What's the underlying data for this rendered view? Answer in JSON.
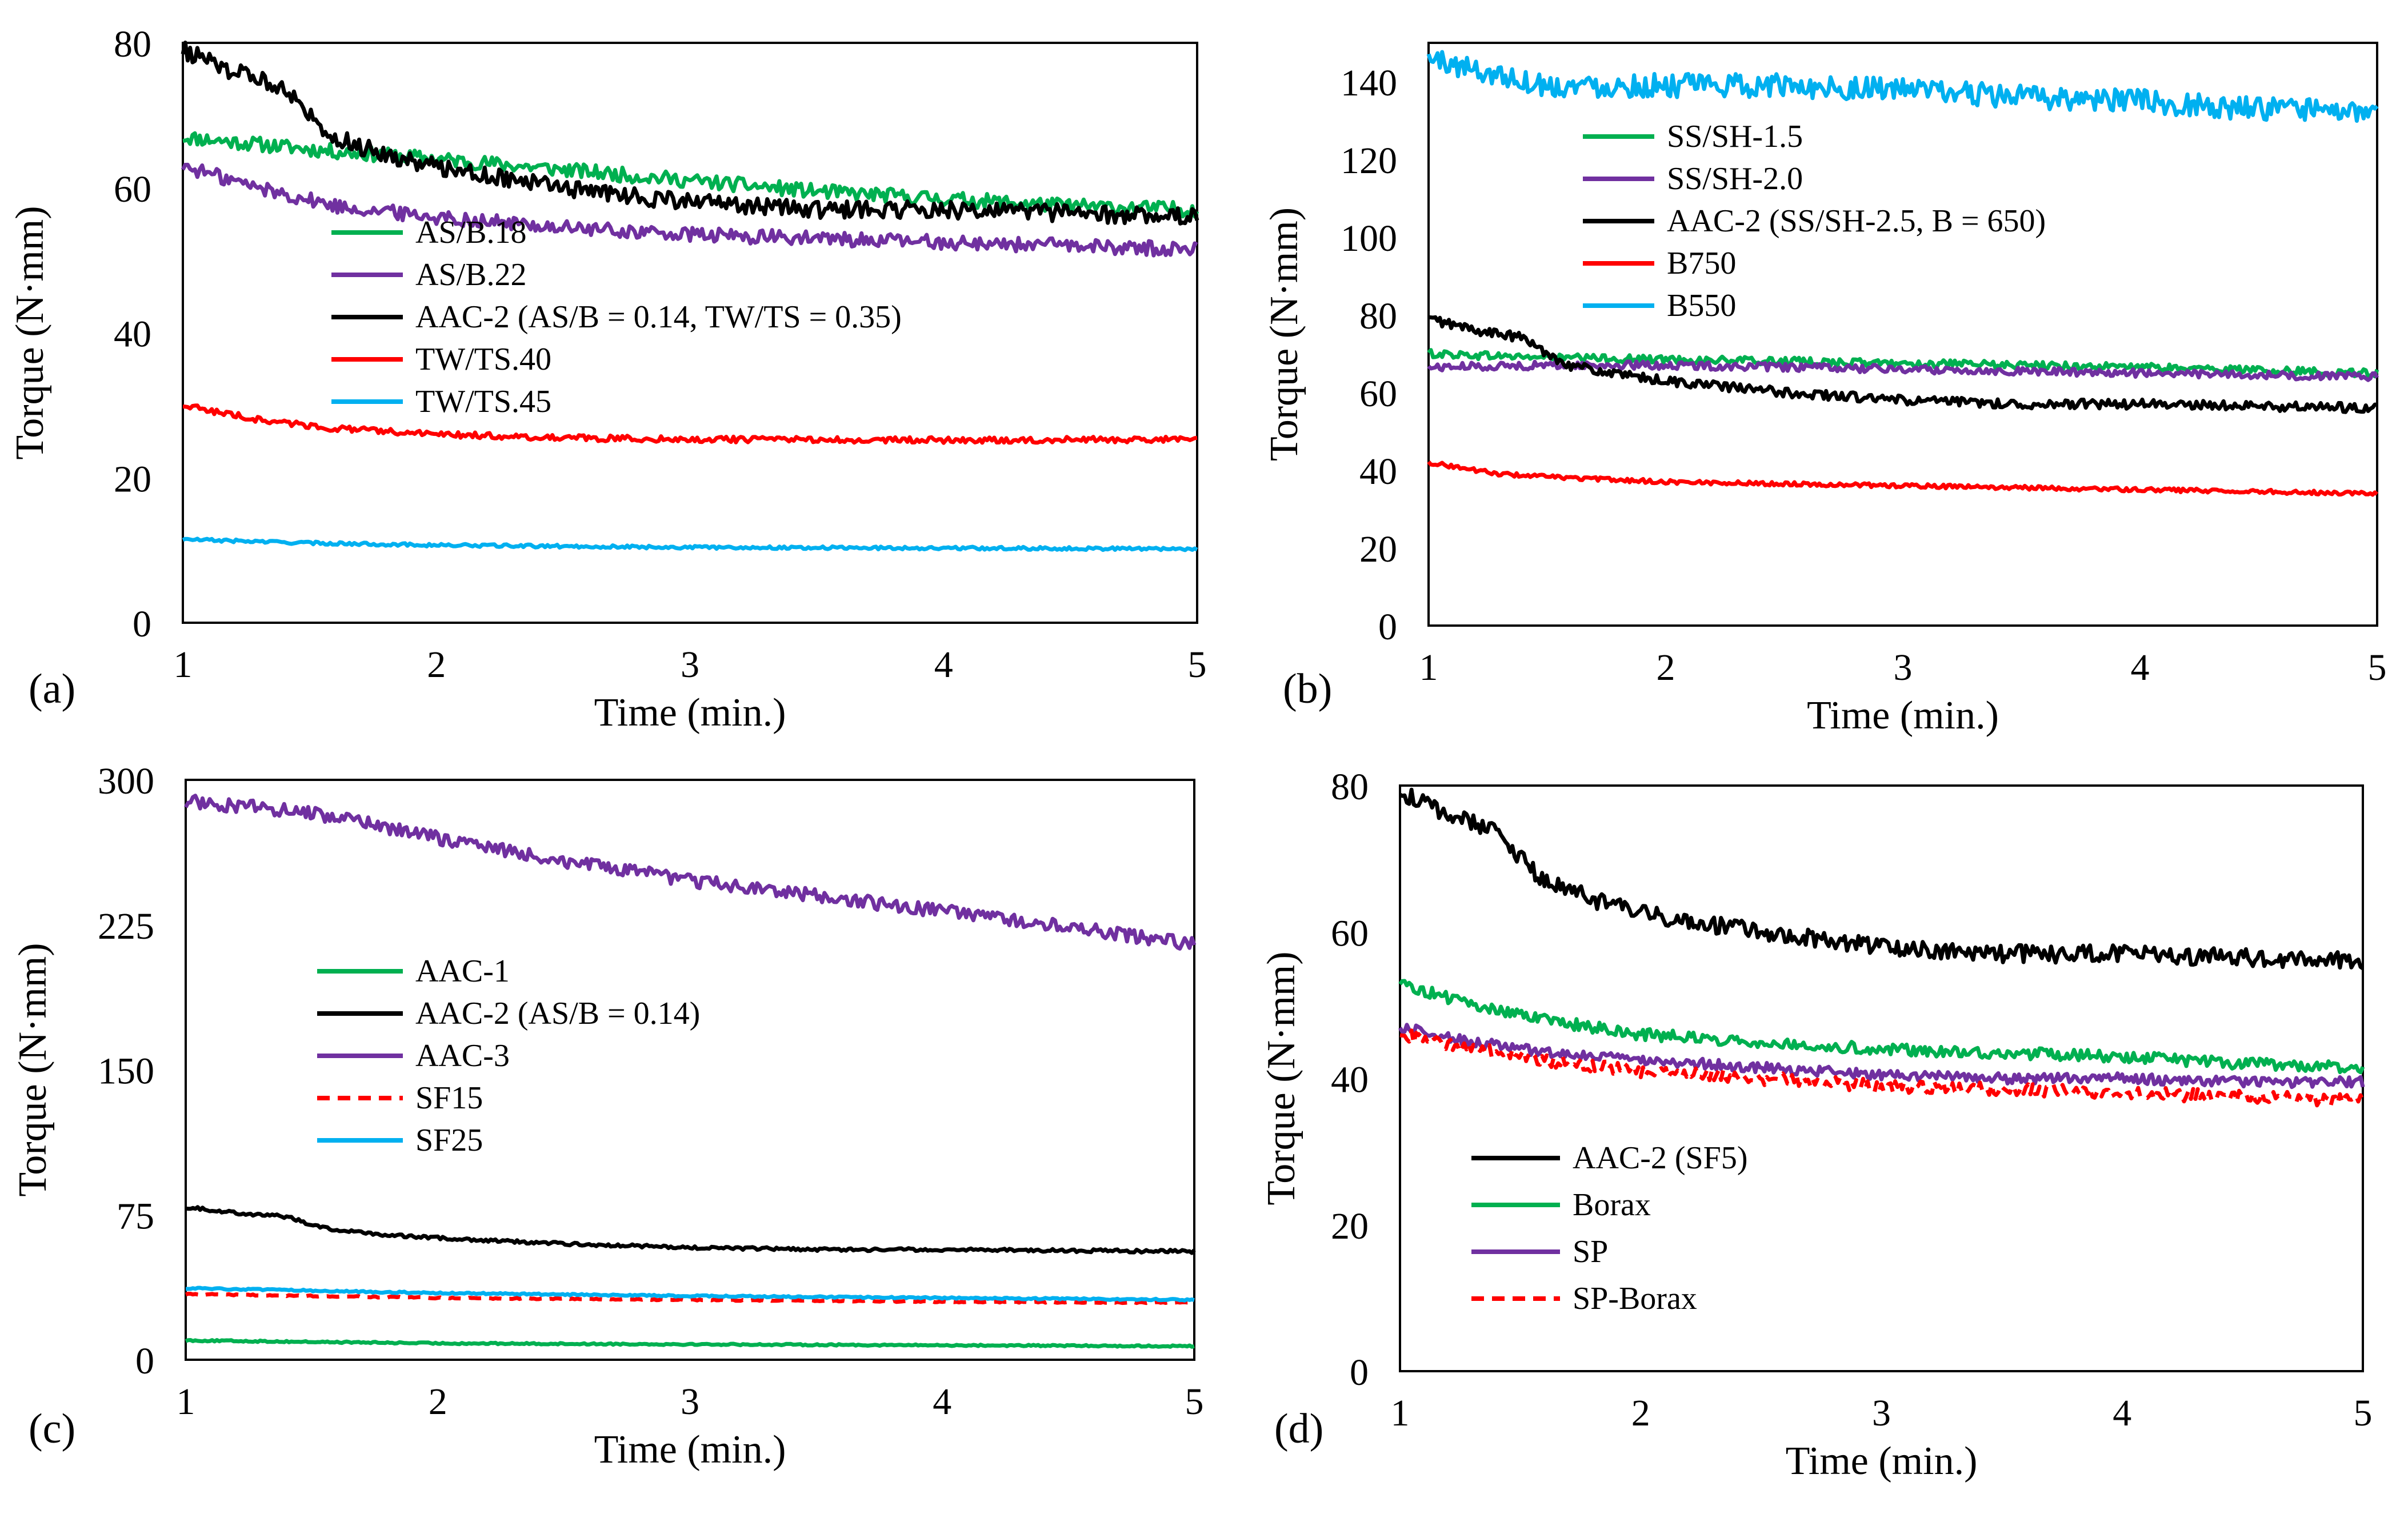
{
  "figure": {
    "time_unit_label": "Time (min.)"
  },
  "chart_data": [
    {
      "type": "line",
      "panel_label": "(a)",
      "xlabel": "Time (min.)",
      "ylabel": "Torque (N·mm)",
      "xlim": [
        1,
        5
      ],
      "ylim": [
        0,
        80
      ],
      "x_ticks": [
        1,
        2,
        3,
        4,
        5
      ],
      "y_ticks": [
        0,
        20,
        40,
        60,
        80
      ],
      "legend_position": "center-left",
      "series": [
        {
          "name": "AS/B.18",
          "color": "#00b050",
          "dash": "solid",
          "noise": 1.0,
          "x": [
            1,
            1.3,
            1.6,
            2,
            2.5,
            3,
            3.5,
            4,
            4.5,
            5
          ],
          "y": [
            67,
            66,
            65,
            64,
            62.5,
            61,
            59.5,
            58.5,
            57.5,
            57
          ]
        },
        {
          "name": "AS/B.22",
          "color": "#7030a0",
          "dash": "solid",
          "noise": 1.0,
          "x": [
            1,
            1.3,
            1.6,
            2,
            2.5,
            3,
            3.5,
            4,
            4.5,
            5
          ],
          "y": [
            63,
            60,
            57.5,
            56,
            54.5,
            53.5,
            53,
            52.5,
            52,
            51.5
          ]
        },
        {
          "name": "AAC-2 (AS/B = 0.14, TW/TS = 0.35)",
          "color": "#000000",
          "dash": "solid",
          "noise": 1.2,
          "x": [
            1,
            1.2,
            1.4,
            1.5,
            1.6,
            1.8,
            2,
            2.5,
            3,
            3.5,
            4,
            4.5,
            5
          ],
          "y": [
            79,
            76,
            74,
            70,
            67,
            64.5,
            63,
            60,
            58,
            57,
            57,
            56.5,
            56
          ]
        },
        {
          "name": "TW/TS.40",
          "color": "#ff0000",
          "dash": "solid",
          "noise": 0.4,
          "x": [
            1,
            1.3,
            1.6,
            2,
            2.5,
            3,
            4,
            5
          ],
          "y": [
            30,
            28,
            26.8,
            26,
            25.5,
            25.3,
            25.2,
            25.3
          ]
        },
        {
          "name": "TW/TS.45",
          "color": "#00b0f0",
          "dash": "solid",
          "noise": 0.2,
          "x": [
            1,
            1.5,
            2,
            3,
            4,
            5
          ],
          "y": [
            11.5,
            11,
            10.7,
            10.4,
            10.3,
            10.2
          ]
        }
      ]
    },
    {
      "type": "line",
      "panel_label": "(b)",
      "xlabel": "Time (min.)",
      "ylabel": "Torque (N·mm)",
      "xlim": [
        1,
        5
      ],
      "ylim": [
        0,
        150
      ],
      "x_ticks": [
        1,
        2,
        3,
        4,
        5
      ],
      "y_ticks": [
        0,
        20,
        40,
        60,
        80,
        100,
        120,
        140
      ],
      "legend_position": "top-center",
      "series": [
        {
          "name": "SS/SH-1.5",
          "color": "#00b050",
          "dash": "solid",
          "noise": 1.0,
          "x": [
            1,
            1.5,
            2,
            3,
            4,
            5
          ],
          "y": [
            70,
            69,
            68.5,
            67.5,
            66.5,
            65
          ]
        },
        {
          "name": "SS/SH-2.0",
          "color": "#7030a0",
          "dash": "solid",
          "noise": 1.0,
          "x": [
            1,
            1.5,
            2,
            3,
            4,
            5
          ],
          "y": [
            66.5,
            67,
            67,
            66,
            65,
            64
          ]
        },
        {
          "name": "AAC-2 (SS/SH-2.5, B = 650)",
          "color": "#000000",
          "dash": "solid",
          "noise": 1.2,
          "x": [
            1,
            1.2,
            1.4,
            1.5,
            1.6,
            1.8,
            2,
            2.5,
            3,
            3.5,
            4,
            4.5,
            5
          ],
          "y": [
            79,
            76,
            74,
            70,
            67,
            64.5,
            63,
            60,
            58,
            57,
            57,
            56.5,
            56
          ]
        },
        {
          "name": "B750",
          "color": "#ff0000",
          "dash": "solid",
          "noise": 0.5,
          "x": [
            1,
            1.3,
            1.6,
            2,
            3,
            4,
            5
          ],
          "y": [
            42,
            39,
            38,
            37,
            36,
            35,
            34
          ]
        },
        {
          "name": "B550",
          "color": "#00b0f0",
          "dash": "solid",
          "noise": 3.0,
          "x": [
            1,
            1.2,
            1.5,
            2,
            2.5,
            3,
            3.5,
            4,
            4.5,
            5
          ],
          "y": [
            146,
            143,
            139,
            139,
            139,
            138,
            136,
            135,
            133,
            132
          ]
        }
      ]
    },
    {
      "type": "line",
      "panel_label": "(c)",
      "xlabel": "Time (min.)",
      "ylabel": "Torque (N·mm)",
      "xlim": [
        1,
        5
      ],
      "ylim": [
        0,
        300
      ],
      "x_ticks": [
        1,
        2,
        3,
        4,
        5
      ],
      "y_ticks": [
        0,
        75,
        150,
        225,
        300
      ],
      "legend_position": "center-left",
      "series": [
        {
          "name": "AAC-1",
          "color": "#00b050",
          "dash": "solid",
          "noise": 0.4,
          "x": [
            1,
            2,
            3,
            4,
            5
          ],
          "y": [
            10,
            8.5,
            8,
            7.5,
            7
          ]
        },
        {
          "name": "AAC-2 (AS/B = 0.14)",
          "color": "#000000",
          "dash": "solid",
          "noise": 0.8,
          "x": [
            1,
            1.2,
            1.4,
            1.5,
            1.6,
            1.8,
            2,
            2.5,
            3,
            3.5,
            4,
            4.5,
            5
          ],
          "y": [
            79,
            76,
            74,
            70,
            67,
            64.5,
            63,
            60,
            58,
            57,
            57,
            56.5,
            56
          ]
        },
        {
          "name": "AAC-3",
          "color": "#7030a0",
          "dash": "solid",
          "noise": 3.5,
          "x": [
            1,
            1.5,
            2,
            2.5,
            3,
            3.5,
            4,
            4.5,
            5
          ],
          "y": [
            289,
            283,
            270,
            258,
            248,
            240,
            232,
            224,
            215
          ]
        },
        {
          "name": "SF15",
          "color": "#ff0000",
          "dash": "dashed",
          "noise": 0.3,
          "x": [
            1,
            2,
            3,
            4,
            5
          ],
          "y": [
            34,
            32,
            31,
            30,
            29.5
          ]
        },
        {
          "name": "SF25",
          "color": "#00b0f0",
          "dash": "solid",
          "noise": 0.4,
          "x": [
            1,
            2,
            3,
            4,
            5
          ],
          "y": [
            37,
            34.5,
            33,
            32,
            31
          ]
        }
      ]
    },
    {
      "type": "line",
      "panel_label": "(d)",
      "xlabel": "Time (min.)",
      "ylabel": "Torque (N·mm)",
      "xlim": [
        1,
        5
      ],
      "ylim": [
        0,
        80
      ],
      "x_ticks": [
        1,
        2,
        3,
        4,
        5
      ],
      "y_ticks": [
        0,
        20,
        40,
        60,
        80
      ],
      "legend_position": "bottom-left",
      "series": [
        {
          "name": "AAC-2 (SF5)",
          "color": "#000000",
          "dash": "solid",
          "noise": 1.2,
          "x": [
            1,
            1.2,
            1.4,
            1.5,
            1.6,
            1.8,
            2,
            2.5,
            3,
            3.5,
            4,
            4.5,
            5
          ],
          "y": [
            79,
            76,
            74,
            70,
            67,
            64.5,
            62.5,
            60,
            58,
            57,
            57,
            56.5,
            56
          ]
        },
        {
          "name": "Borax",
          "color": "#00b050",
          "dash": "solid",
          "noise": 0.8,
          "x": [
            1,
            1.3,
            1.6,
            2,
            2.5,
            3,
            3.5,
            4,
            4.5,
            5
          ],
          "y": [
            53,
            50,
            48,
            46,
            45,
            44,
            43.5,
            43,
            42,
            41.5
          ]
        },
        {
          "name": "SP",
          "color": "#7030a0",
          "dash": "solid",
          "noise": 0.7,
          "x": [
            1,
            1.3,
            1.6,
            2,
            2.5,
            3,
            3.5,
            4,
            4.5,
            5
          ],
          "y": [
            47,
            45,
            43.5,
            42.5,
            41.5,
            40.5,
            40,
            40,
            39.5,
            39.5
          ]
        },
        {
          "name": "SP-Borax",
          "color": "#ff0000",
          "dash": "dashed",
          "noise": 0.9,
          "x": [
            1,
            1.3,
            1.6,
            2,
            2.5,
            3,
            3.5,
            4,
            4.5,
            5
          ],
          "y": [
            46,
            44,
            42.5,
            41,
            40,
            39,
            38.5,
            38,
            37.5,
            37
          ]
        }
      ]
    }
  ]
}
